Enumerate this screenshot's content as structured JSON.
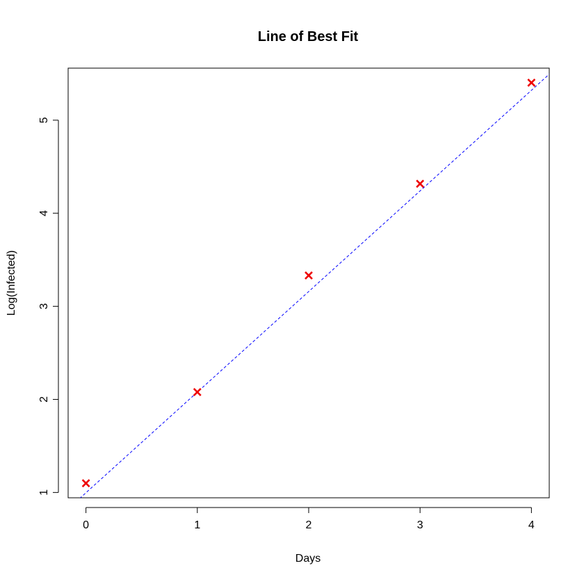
{
  "chart_data": {
    "type": "scatter",
    "title": "Line of Best Fit",
    "xlabel": "Days",
    "ylabel": "Log(Infected)",
    "x": [
      0,
      1,
      2,
      3,
      4
    ],
    "y": [
      1.099,
      2.079,
      3.332,
      4.317,
      5.403
    ],
    "x_ticks": [
      0,
      1,
      2,
      3,
      4
    ],
    "y_ticks": [
      1,
      2,
      3,
      4,
      5
    ],
    "xlim": [
      -0.16,
      4.16
    ],
    "ylim": [
      0.9428,
      5.5592
    ],
    "marker": "x",
    "marker_color": "#ee0000",
    "fit_line": {
      "intercept": 0.997,
      "slope": 1.081,
      "style": "dashed",
      "color": "#0000ff"
    },
    "grid": false,
    "legend": "none"
  }
}
